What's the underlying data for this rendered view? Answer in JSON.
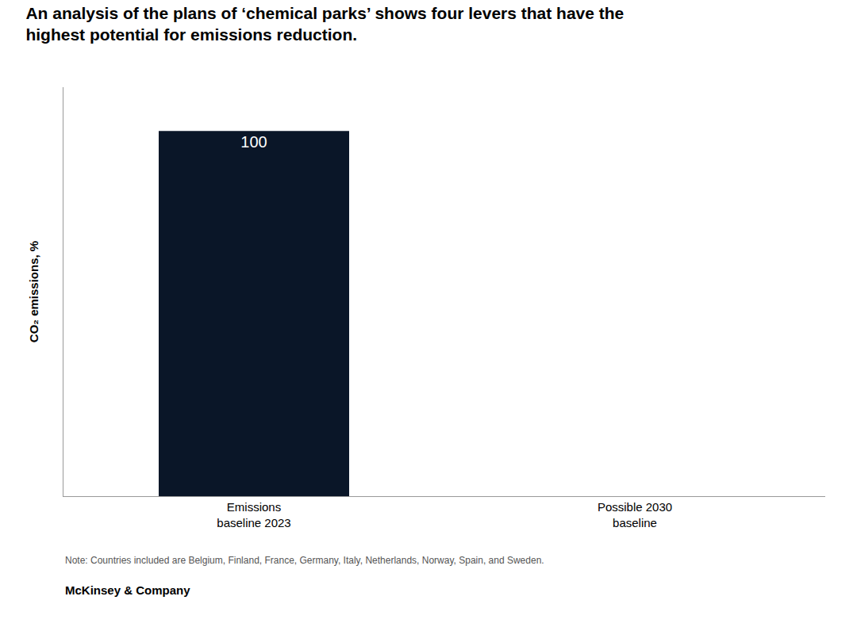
{
  "chart_data": {
    "type": "bar",
    "title": "An analysis of the plans of ‘chemical parks’ shows four levers that have the\nhighest potential for emissions reduction.",
    "y_label": "CO₂ emissions, %",
    "categories": [
      "Emissions\nbaseline 2023",
      "Possible 2030\nbaseline"
    ],
    "values": [
      100,
      null
    ],
    "color": "#0a1628",
    "ylim": [
      0,
      112
    ],
    "data_labels": true,
    "tick_labels": "x",
    "grid": false,
    "annotations": [
      "Note: Countries included are Belgium, Finland, France, Germany, Italy, Netherlands, Norway, Spain, and Sweden.",
      "McKinsey & Company"
    ]
  }
}
